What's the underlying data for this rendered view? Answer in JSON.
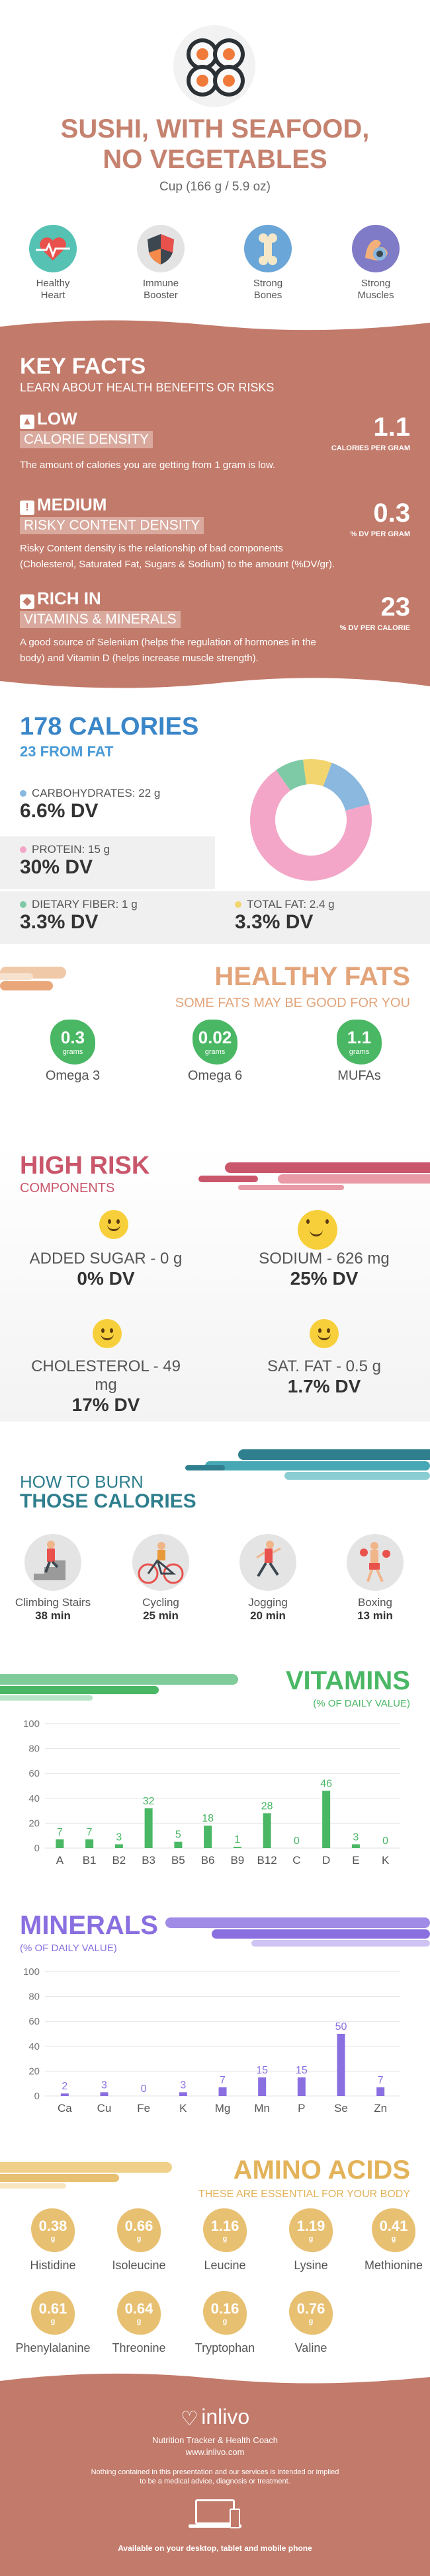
{
  "header": {
    "title_line1": "SUSHI, WITH SEAFOOD,",
    "title_line2": "NO VEGETABLES",
    "serving": "Cup (166 g / 5.9 oz)"
  },
  "benefits": [
    {
      "icon": "heart-icon",
      "label1": "Healthy",
      "label2": "Heart"
    },
    {
      "icon": "shield-icon",
      "label1": "Immune",
      "label2": "Booster"
    },
    {
      "icon": "bone-icon",
      "label1": "Strong",
      "label2": "Bones"
    },
    {
      "icon": "muscle-icon",
      "label1": "Strong",
      "label2": "Muscles"
    }
  ],
  "key_facts": {
    "title": "KEY FACTS",
    "subtitle": "LEARN ABOUT HEALTH BENEFITS OR RISKS",
    "items": [
      {
        "level": "LOW",
        "name": "CALORIE DENSITY",
        "value": "1.1",
        "unit": "CALORIES PER GRAM",
        "desc": "The amount of calories you are getting from 1 gram is low."
      },
      {
        "level": "MEDIUM",
        "name": "RISKY CONTENT DENSITY",
        "value": "0.3",
        "unit": "% DV PER GRAM",
        "desc1": "Risky Content density is the relationship of bad components",
        "desc2": "(Cholesterol, Saturated Fat, Sugars & Sodium) to the amount (%DV/gr)."
      },
      {
        "level": "RICH  IN",
        "name": "VITAMINS & MINERALS",
        "value": "23",
        "unit": "% DV PER CALORIE",
        "desc1": "A good source of Selenium (helps the regulation of hormones in the",
        "desc2": "body) and Vitamin D (helps increase muscle strength)."
      }
    ]
  },
  "calories": {
    "title": "178 CALORIES",
    "from_fat": "23 FROM FAT",
    "nutrients": [
      {
        "label": "CARBOHYDRATES: 22 g",
        "dv": "6.6% DV",
        "color": "#8ab8de"
      },
      {
        "label": "PROTEIN: 15 g",
        "dv": "30% DV",
        "color": "#f3a6c7"
      },
      {
        "label": "DIETARY FIBER: 1 g",
        "dv": "3.3% DV",
        "color": "#7ec9a6"
      },
      {
        "label": "TOTAL FAT: 2.4 g",
        "dv": "3.3% DV",
        "color": "#f2d56e"
      }
    ]
  },
  "fats": {
    "title": "HEALTHY FATS",
    "subtitle": "SOME FATS MAY BE GOOD FOR YOU",
    "unit": "grams",
    "items": [
      {
        "value": "0.3",
        "label": "Omega 3"
      },
      {
        "value": "0.02",
        "label": "Omega 6"
      },
      {
        "value": "1.1",
        "label": "MUFAs"
      }
    ]
  },
  "risk": {
    "title": "HIGH RISK",
    "subtitle": "COMPONENTS",
    "items": [
      {
        "label": "ADDED SUGAR - 0 g",
        "dv": "0% DV"
      },
      {
        "label": "SODIUM - 626 mg",
        "dv": "25% DV"
      },
      {
        "label": "CHOLESTEROL - 49 mg",
        "dv": "17% DV"
      },
      {
        "label": "SAT. FAT - 0.5 g",
        "dv": "1.7% DV"
      }
    ]
  },
  "burn": {
    "title1": "HOW TO BURN",
    "title2": "THOSE CALORIES",
    "items": [
      {
        "label": "Climbing Stairs",
        "mins": "38 min"
      },
      {
        "label": "Cycling",
        "mins": "25 min"
      },
      {
        "label": "Jogging",
        "mins": "20 min"
      },
      {
        "label": "Boxing",
        "mins": "13 min"
      }
    ]
  },
  "vitamins_section": {
    "title": "VITAMINS",
    "subtitle": "(% OF DAILY VALUE)"
  },
  "minerals_section": {
    "title": "MINERALS",
    "subtitle": "(% OF DAILY VALUE)"
  },
  "amino": {
    "title": "AMINO ACIDS",
    "subtitle": "THESE ARE ESSENTIAL FOR YOUR BODY",
    "unit": "g",
    "items": [
      {
        "value": "0.38",
        "label": "Histidine"
      },
      {
        "value": "0.66",
        "label": "Isoleucine"
      },
      {
        "value": "1.16",
        "label": "Leucine"
      },
      {
        "value": "1.19",
        "label": "Lysine"
      },
      {
        "value": "0.41",
        "label": "Methionine"
      },
      {
        "value": "0.61",
        "label": "Phenylalanine"
      },
      {
        "value": "0.64",
        "label": "Threonine"
      },
      {
        "value": "0.16",
        "label": "Tryptophan"
      },
      {
        "value": "0.76",
        "label": "Valine"
      }
    ]
  },
  "footer": {
    "brand": "inlivo",
    "tagline": "Nutrition Tracker & Health Coach",
    "url": "www.inlivo.com",
    "disclaimer1": "Nothing contained in this presentation and our services is intended or implied",
    "disclaimer2": "to be a medical advice, diagnosis or treatment.",
    "available": "Available on your desktop, tablet and mobile phone"
  },
  "chart_data": [
    {
      "type": "bar",
      "title": "VITAMINS",
      "categories": [
        "A",
        "B1",
        "B2",
        "B3",
        "B5",
        "B6",
        "B9",
        "B12",
        "C",
        "D",
        "E",
        "K"
      ],
      "values": [
        7,
        7,
        3,
        32,
        5,
        18,
        1,
        28,
        0,
        46,
        3,
        0
      ],
      "ylim": [
        0,
        100
      ],
      "color": "#4ab764"
    },
    {
      "type": "bar",
      "title": "MINERALS",
      "categories": [
        "Ca",
        "Cu",
        "Fe",
        "K",
        "Mg",
        "Mn",
        "P",
        "Se",
        "Zn"
      ],
      "values": [
        2,
        3,
        0,
        3,
        7,
        15,
        15,
        50,
        7
      ],
      "ylim": [
        0,
        100
      ],
      "color": "#8a6fe0"
    },
    {
      "type": "pie",
      "values": [
        6.6,
        30,
        3.3,
        3.3
      ],
      "labels": [
        "Carbohydrates",
        "Protein",
        "Dietary Fiber",
        "Total Fat"
      ]
    }
  ]
}
